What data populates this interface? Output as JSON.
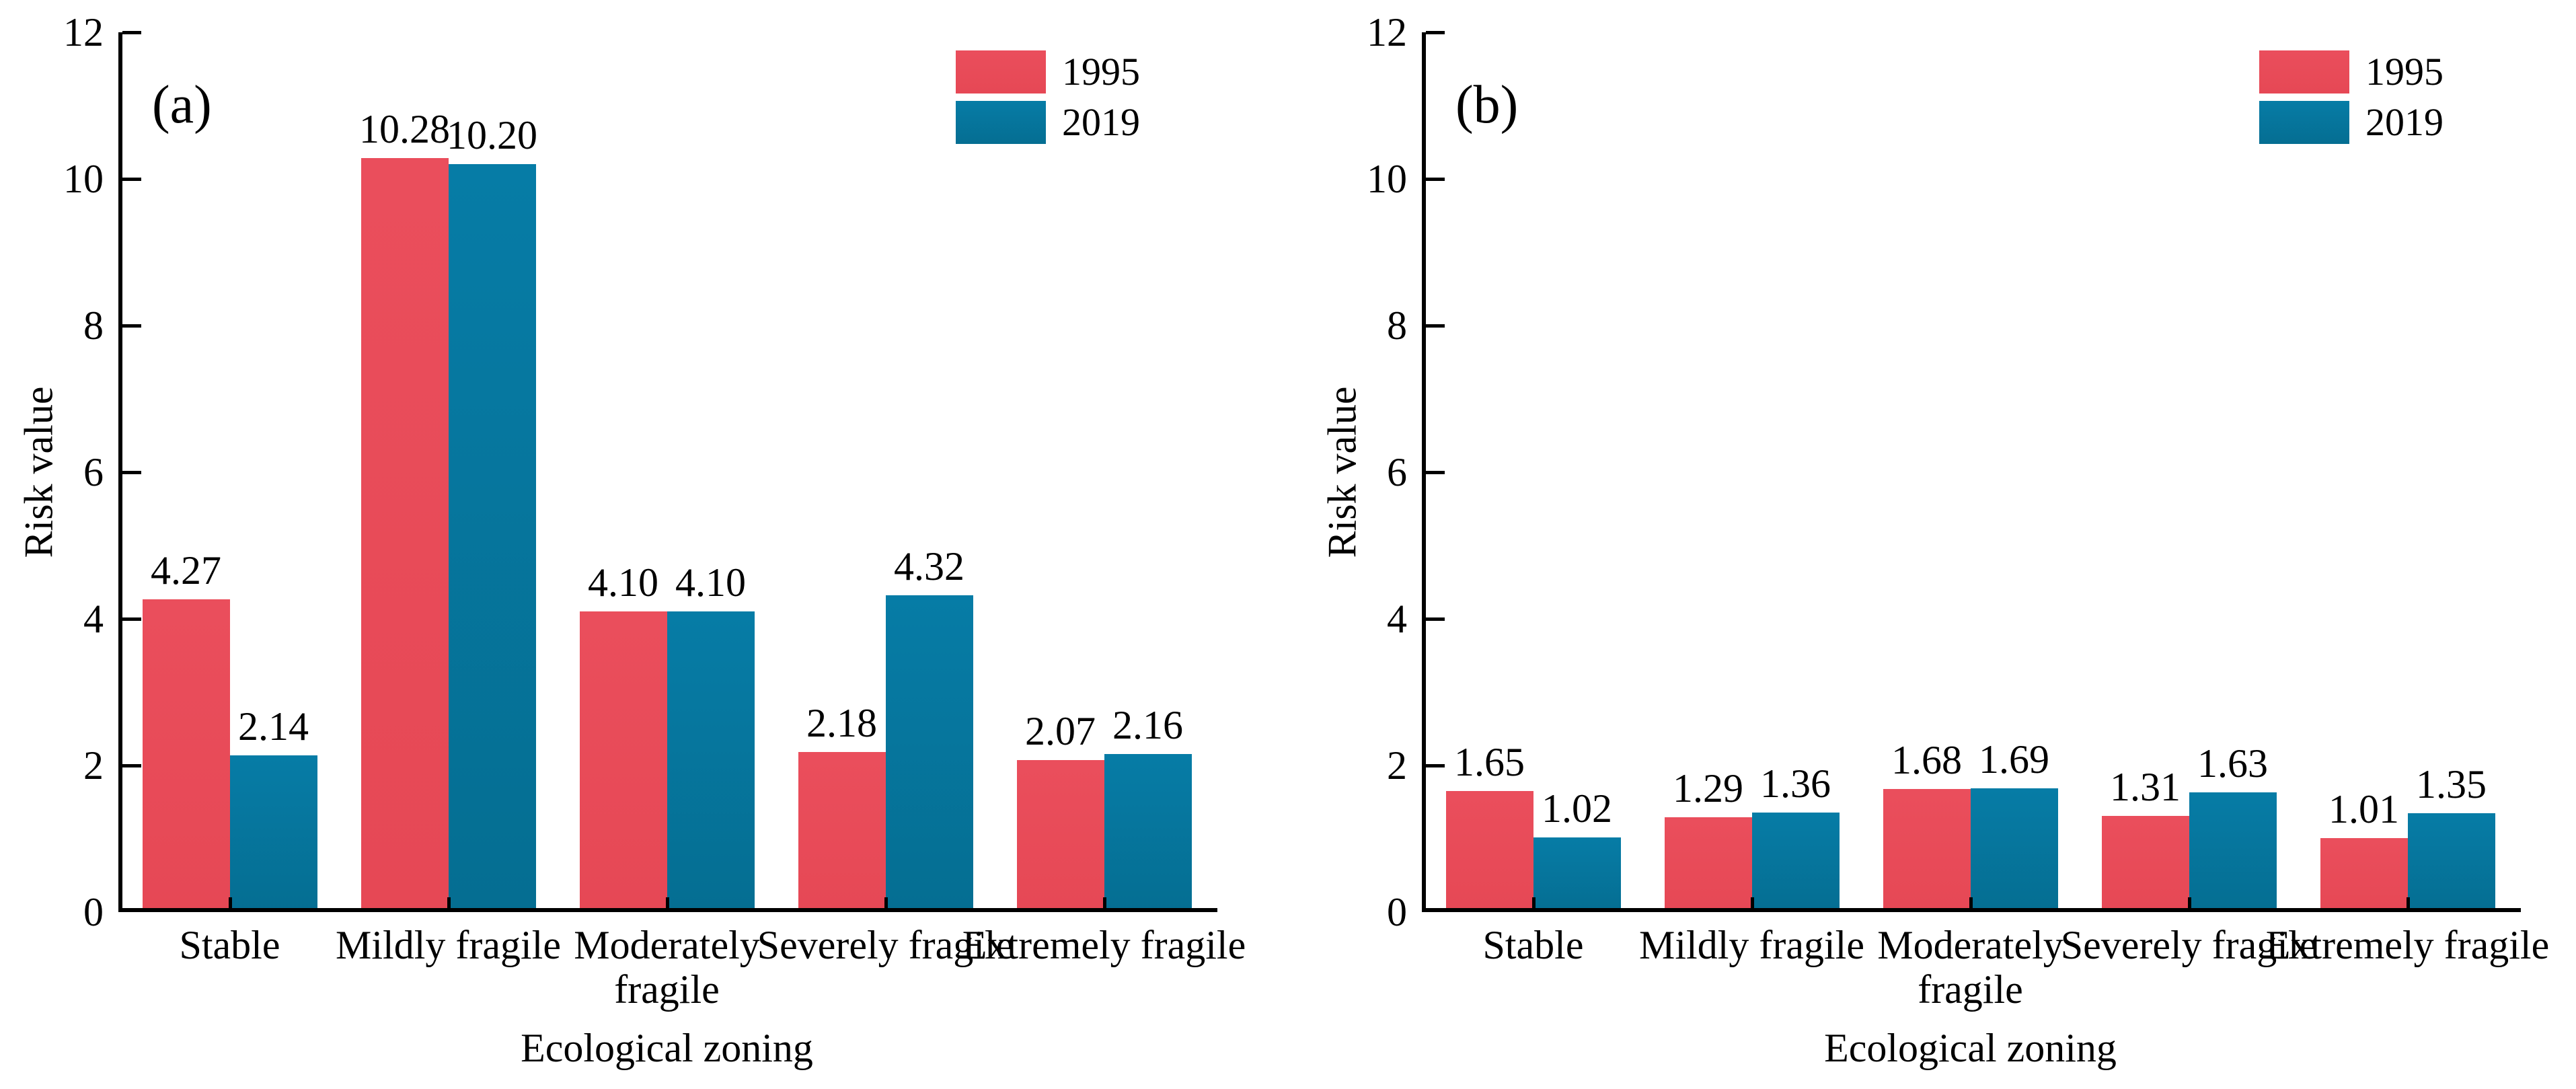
{
  "figure": {
    "background": "#FFFFFF",
    "text_color": "#000000",
    "axis_color": "#000000"
  },
  "chart_data": [
    {
      "id": "a",
      "type": "bar",
      "panel_label": "(a)",
      "xlabel": "Ecological zoning",
      "ylabel": "Risk value",
      "ylim": [
        0,
        12
      ],
      "yticks": [
        0,
        2,
        4,
        6,
        8,
        10,
        12
      ],
      "grid": false,
      "legend_position": "top-right",
      "value_label_format": "0.00",
      "categories": [
        "Stable",
        "Mildly fragile",
        "Moderately\nfragile",
        "Severely fragile",
        "Extremely fragile"
      ],
      "series": [
        {
          "name": "1995",
          "color": "#EA4E5C",
          "color_dark": "#E64855",
          "values": [
            4.27,
            10.28,
            4.1,
            2.18,
            2.07
          ],
          "labels": [
            "4.27",
            "10.28",
            "4.10",
            "2.18",
            "2.07"
          ]
        },
        {
          "name": "2019",
          "color": "#067CA6",
          "color_dark": "#056E92",
          "values": [
            2.14,
            10.2,
            4.1,
            4.32,
            2.16
          ],
          "labels": [
            "2.14",
            "10.20",
            "4.10",
            "4.32",
            "2.16"
          ]
        }
      ]
    },
    {
      "id": "b",
      "type": "bar",
      "panel_label": "(b)",
      "xlabel": "Ecological zoning",
      "ylabel": "Risk value",
      "ylim": [
        0,
        12
      ],
      "yticks": [
        0,
        2,
        4,
        6,
        8,
        10,
        12
      ],
      "grid": false,
      "legend_position": "top-right",
      "value_label_format": "0.00",
      "categories": [
        "Stable",
        "Mildly fragile",
        "Moderately\nfragile",
        "Severely fragile",
        "Extremely fragile"
      ],
      "series": [
        {
          "name": "1995",
          "color": "#EA4E5C",
          "color_dark": "#E64855",
          "values": [
            1.65,
            1.29,
            1.68,
            1.31,
            1.01
          ],
          "labels": [
            "1.65",
            "1.29",
            "1.68",
            "1.31",
            "1.01"
          ]
        },
        {
          "name": "2019",
          "color": "#067CA6",
          "color_dark": "#056E92",
          "values": [
            1.02,
            1.36,
            1.69,
            1.63,
            1.35
          ],
          "labels": [
            "1.02",
            "1.36",
            "1.69",
            "1.63",
            "1.35"
          ]
        }
      ]
    }
  ]
}
